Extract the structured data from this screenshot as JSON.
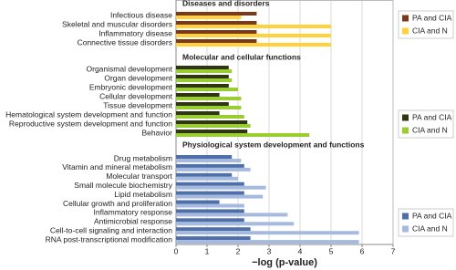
{
  "chart_data": [
    {
      "type": "bar",
      "orientation": "horizontal",
      "title": "Diseases and disorders",
      "categories": [
        "Infectious disease",
        "Skeletal and muscular disorders",
        "Inflammatory disease",
        "Connective tissue disorders"
      ],
      "series": [
        {
          "name": "PA and CIA",
          "color": "#7a3a1a",
          "values": [
            2.6,
            2.6,
            2.6,
            2.6
          ]
        },
        {
          "name": "CIA and N",
          "color": "#ffd23c",
          "values": [
            2.1,
            5.0,
            5.0,
            5.0
          ]
        }
      ],
      "xlim": [
        0,
        7
      ],
      "grid": true
    },
    {
      "type": "bar",
      "orientation": "horizontal",
      "title": "Molecular and cellular functions",
      "categories": [
        "Organismal development",
        "Organ development",
        "Embryonic development",
        "Cellular development",
        "Tissue development",
        "Hematological system development and function",
        "Reproductive system development and function",
        "Behavior"
      ],
      "series": [
        {
          "name": "PA and CIA",
          "color": "#2e3612",
          "values": [
            1.7,
            1.7,
            1.7,
            1.4,
            1.7,
            1.4,
            2.3,
            2.3
          ]
        },
        {
          "name": "CIA and N",
          "color": "#9acd32",
          "values": [
            1.8,
            1.8,
            2.0,
            2.1,
            2.1,
            2.2,
            2.4,
            4.3
          ]
        }
      ],
      "xlim": [
        0,
        7
      ],
      "grid": true
    },
    {
      "type": "bar",
      "orientation": "horizontal",
      "title": "Physiological system development and functions",
      "categories": [
        "Drug metabolism",
        "Vitamin and mineral metabolism",
        "Molecular transport",
        "Small molecule biochemistry",
        "Lipid metabolism",
        "Cellular growth and proliferation",
        "Inflammatory response",
        "Antimicrobial response",
        "Cell-to-cell signaling and interaction",
        "RNA post-transcriptional modification"
      ],
      "series": [
        {
          "name": "PA and CIA",
          "color": "#4f6fa8",
          "values": [
            1.8,
            2.2,
            1.8,
            2.2,
            2.2,
            1.4,
            2.2,
            2.2,
            2.4,
            2.4
          ]
        },
        {
          "name": "CIA and N",
          "color": "#a6badf",
          "values": [
            2.1,
            2.4,
            2.0,
            2.9,
            2.8,
            2.2,
            3.6,
            3.8,
            5.9,
            5.9
          ]
        }
      ],
      "xlim": [
        0,
        7
      ],
      "xticks": [
        0,
        1,
        2,
        3,
        4,
        5,
        6,
        7
      ],
      "x_label": "−log (p-value)",
      "grid": true
    }
  ]
}
